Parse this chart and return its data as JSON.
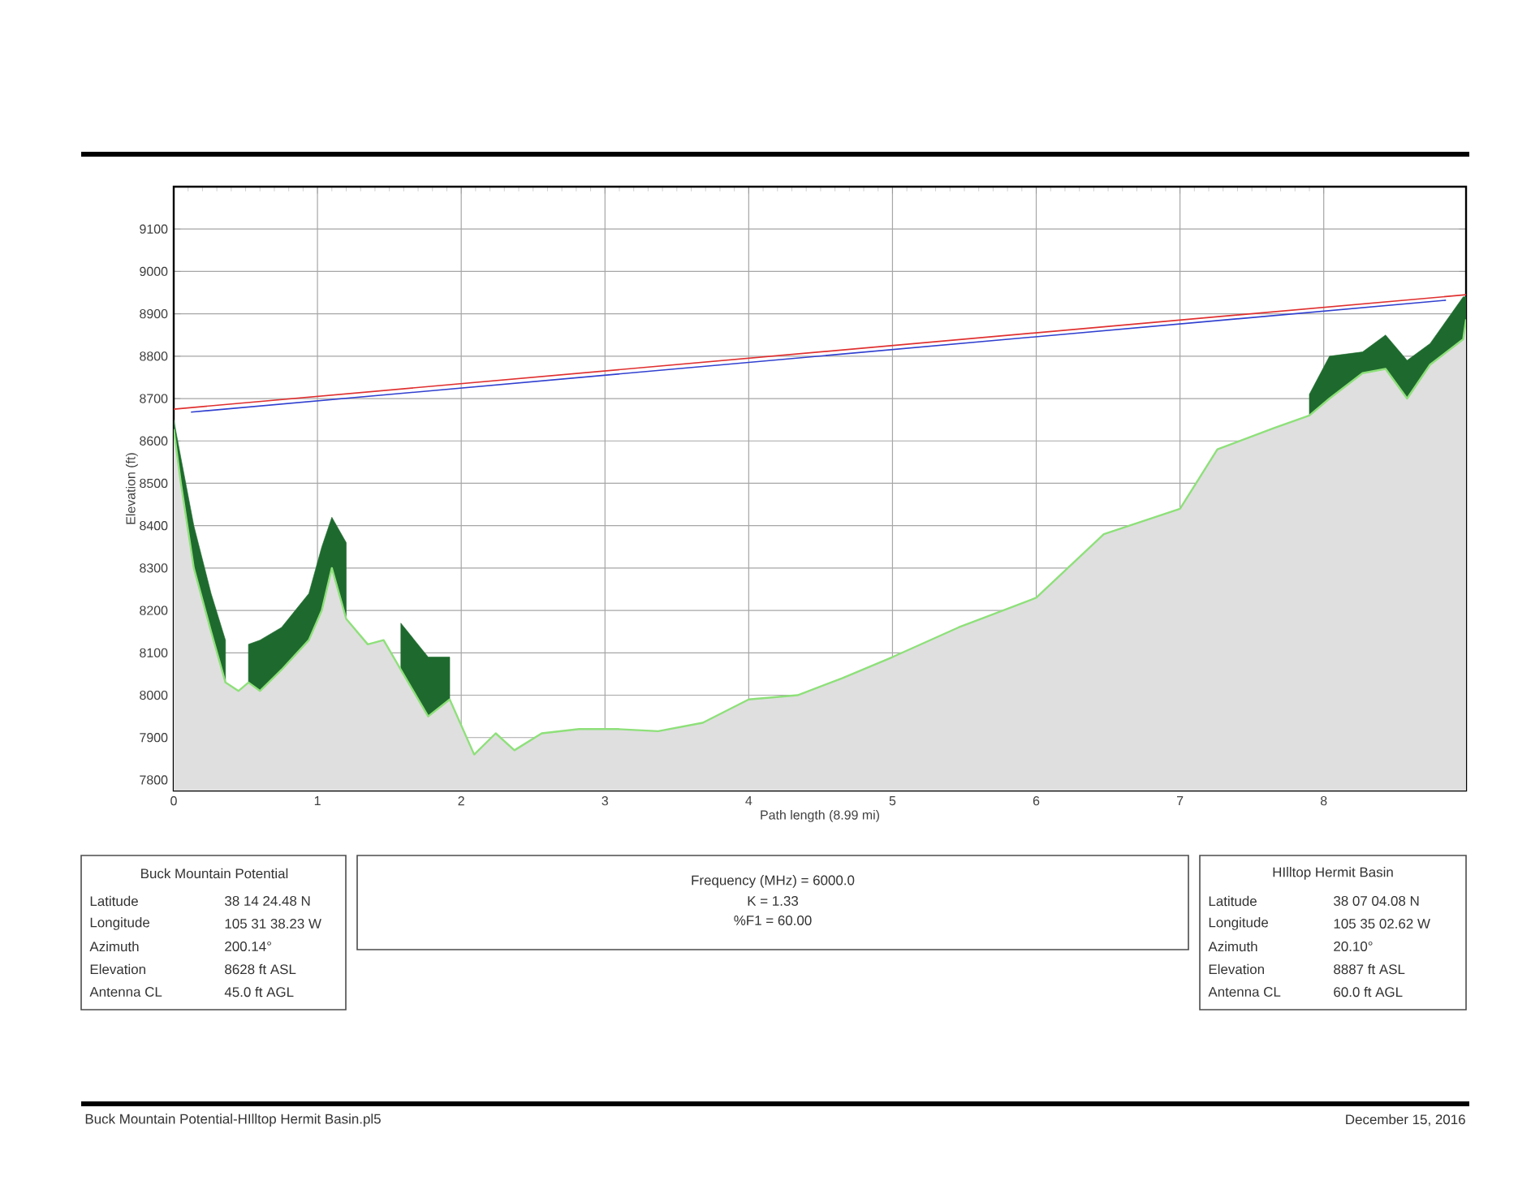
{
  "chart_data": {
    "type": "area",
    "xlabel": "Path length (8.99 mi)",
    "ylabel": "Elevation (ft)",
    "xlim": [
      0,
      8.99
    ],
    "ylim": [
      7775,
      9200
    ],
    "xticks": [
      0,
      1,
      2,
      3,
      4,
      5,
      6,
      7,
      8
    ],
    "yticks": [
      7800,
      7900,
      8000,
      8100,
      8200,
      8300,
      8400,
      8500,
      8600,
      8700,
      8800,
      8900,
      9000,
      9100
    ],
    "grid": true,
    "series": [
      {
        "color": "#8ee07a",
        "x": [
          0,
          0.05,
          0.14,
          0.26,
          0.36,
          0.45,
          0.52,
          0.6,
          0.75,
          0.94,
          1.03,
          1.1,
          1.2,
          1.35,
          1.46,
          1.58,
          1.77,
          1.92,
          2.09,
          2.24,
          2.37,
          2.56,
          2.82,
          3.09,
          3.37,
          3.68,
          4.0,
          4.34,
          4.65,
          5.0,
          5.46,
          6.0,
          6.47,
          7.0,
          7.26,
          7.65,
          7.9,
          8.04,
          8.27,
          8.43,
          8.58,
          8.74,
          8.97,
          8.99
        ],
        "values": [
          8628,
          8500,
          8300,
          8150,
          8030,
          8010,
          8030,
          8010,
          8060,
          8130,
          8200,
          8300,
          8180,
          8120,
          8130,
          8060,
          7950,
          7990,
          7860,
          7910,
          7870,
          7910,
          7920,
          7920,
          7915,
          7935,
          7990,
          8000,
          8040,
          8090,
          8160,
          8230,
          8380,
          8440,
          8580,
          8630,
          8660,
          8700,
          8760,
          8770,
          8700,
          8780,
          8840,
          8887
        ],
        "lower": [
          8628,
          8500,
          8300,
          8150,
          8030,
          null,
          8030,
          8010,
          8060,
          8130,
          8200,
          8300,
          8180,
          null,
          null,
          8060,
          7950,
          7990,
          null,
          null,
          null,
          null,
          null,
          null,
          null,
          null,
          null,
          null,
          null,
          null,
          null,
          null,
          null,
          null,
          null,
          null,
          8660,
          8700,
          8760,
          8770,
          8700,
          8780,
          8840,
          8887
        ],
        "upper": [
          8650,
          8560,
          8400,
          8240,
          8130,
          null,
          8120,
          8130,
          8160,
          8240,
          8350,
          8420,
          8360,
          null,
          null,
          8170,
          8090,
          8090,
          null,
          null,
          null,
          null,
          null,
          null,
          null,
          null,
          null,
          null,
          null,
          null,
          null,
          null,
          null,
          null,
          null,
          null,
          8710,
          8800,
          8810,
          8850,
          8790,
          8830,
          8940,
          8940
        ]
      },
      {
        "type": "line",
        "color": "#e03030",
        "x": [
          0,
          8.99
        ],
        "values": [
          8675,
          8945
        ]
      },
      {
        "type": "line",
        "color": "#3040d0",
        "x": [
          0.12,
          8.85
        ],
        "values": [
          8668,
          8932
        ]
      }
    ],
    "annotations": [
      "Buck Mountain Potential",
      "Latitude",
      "Longitude",
      "Azimuth",
      "Elevation",
      "Antenna CL",
      "38 14 24.48 N",
      "105 31 38.23 W",
      "200.14°",
      "8628 ft ASL",
      "45.0 ft AGL",
      "Frequency (MHz) = 6000.0",
      "K =  1.33",
      "%F1 = 60.00",
      "HIlltop Hermit Basin",
      "Latitude",
      "Longitude",
      "Azimuth",
      "Elevation",
      "Antenna CL",
      "38 07 04.08 N",
      "105 35 02.62 W",
      "20.10°",
      "8887 ft ASL",
      "60.0 ft AGL",
      "Buck Mountain Potential-HIlltop Hermit Basin.pl5",
      "December 15, 2016"
    ]
  }
}
